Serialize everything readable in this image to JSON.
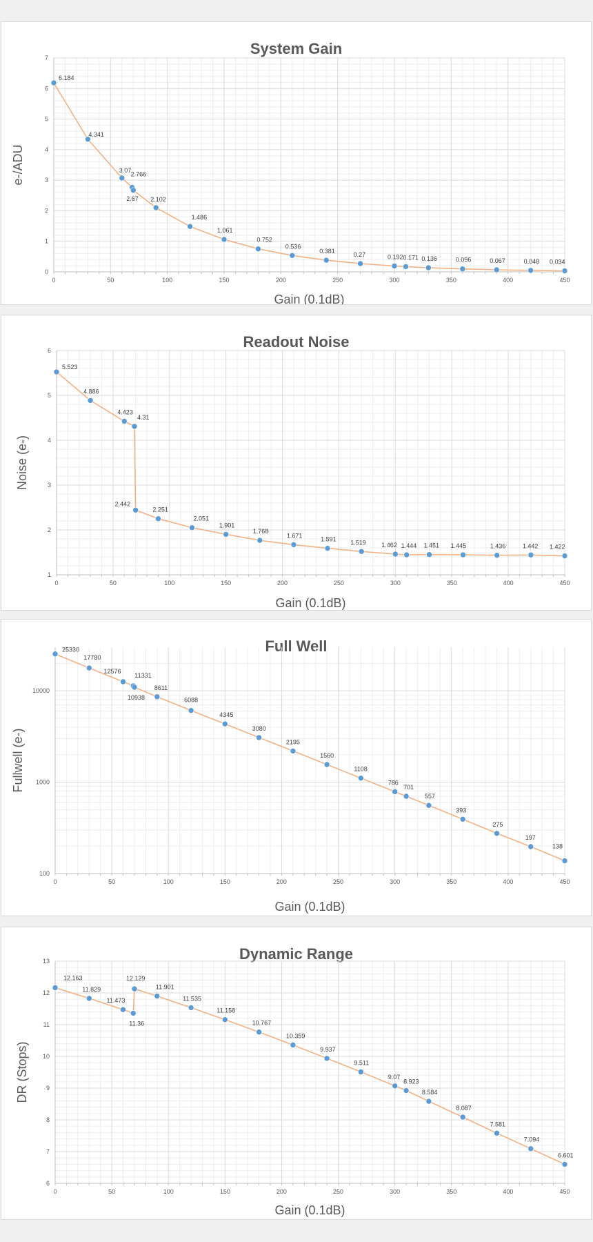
{
  "colors": {
    "line": "#f4b183",
    "marker": "#5b9bd5",
    "grid_major": "#d9d9d9",
    "grid_minor": "#eeeeee",
    "axis": "#bfbfbf",
    "text": "#595959"
  },
  "chart_data": [
    {
      "type": "line",
      "title": "System Gain",
      "xlabel": "Gain (0.1dB)",
      "ylabel": "e-/ADU",
      "xlim": [
        0,
        450
      ],
      "ylim": [
        0,
        7
      ],
      "x_ticks": [
        "0",
        "50",
        "100",
        "150",
        "200",
        "250",
        "300",
        "350",
        "400",
        "450"
      ],
      "y_ticks": [
        "0",
        "1",
        "2",
        "3",
        "4",
        "5",
        "6",
        "7"
      ],
      "grid": true,
      "series": [
        {
          "x": [
            0,
            30,
            60,
            69,
            70,
            90,
            120,
            150,
            180,
            210,
            240,
            270,
            300,
            310,
            330,
            360,
            390,
            420,
            450
          ],
          "y": [
            6.184,
            4.341,
            3.07,
            2.766,
            2.67,
            2.102,
            1.486,
            1.061,
            0.752,
            0.536,
            0.381,
            0.27,
            0.192,
            0.171,
            0.136,
            0.096,
            0.067,
            0.048,
            0.034
          ],
          "labels": [
            "6.184",
            "4.341",
            "3.07",
            "2.766",
            "2.67",
            "2.102",
            "1.486",
            "1.061",
            "0.752",
            "0.536",
            "0.381",
            "0.27",
            "0.192",
            "0.171",
            "0.136",
            "0.096",
            "0.067",
            "0.048",
            "0.034"
          ]
        }
      ]
    },
    {
      "type": "line",
      "title": "Readout Noise",
      "xlabel": "Gain (0.1dB)",
      "ylabel": "Noise (e-)",
      "xlim": [
        0,
        450
      ],
      "ylim": [
        1,
        6
      ],
      "x_ticks": [
        "0",
        "50",
        "100",
        "150",
        "200",
        "250",
        "300",
        "350",
        "400",
        "450"
      ],
      "y_ticks": [
        "1",
        "2",
        "3",
        "4",
        "5",
        "6"
      ],
      "grid": true,
      "series": [
        {
          "x": [
            0,
            30,
            60,
            69,
            70,
            90,
            120,
            150,
            180,
            210,
            240,
            270,
            300,
            310,
            330,
            360,
            390,
            420,
            450
          ],
          "y": [
            5.523,
            4.886,
            4.423,
            4.31,
            2.442,
            2.251,
            2.051,
            1.901,
            1.768,
            1.671,
            1.591,
            1.519,
            1.462,
            1.444,
            1.451,
            1.445,
            1.436,
            1.442,
            1.422
          ],
          "labels": [
            "5.523",
            "4.886",
            "4.423",
            "4.31",
            "2.442",
            "2.251",
            "2.051",
            "1.901",
            "1.768",
            "1.671",
            "1.591",
            "1.519",
            "1.462",
            "1.444",
            "1.451",
            "1.445",
            "1.436",
            "1.442",
            "1.422"
          ]
        }
      ]
    },
    {
      "type": "line",
      "title": "Full Well",
      "xlabel": "Gain (0.1dB)",
      "ylabel": "Fullwell (e-)",
      "xlim": [
        0,
        450
      ],
      "ylim": [
        100,
        30000
      ],
      "log_y": true,
      "x_ticks": [
        "0",
        "50",
        "100",
        "150",
        "200",
        "250",
        "300",
        "350",
        "400",
        "450"
      ],
      "y_ticks": [
        "100",
        "1000",
        "10000"
      ],
      "grid": true,
      "series": [
        {
          "x": [
            0,
            30,
            60,
            69,
            70,
            90,
            120,
            150,
            180,
            210,
            240,
            270,
            300,
            310,
            330,
            360,
            390,
            420,
            450
          ],
          "y": [
            25330,
            17780,
            12576,
            11331,
            10938,
            8611,
            6088,
            4345,
            3080,
            2195,
            1560,
            1108,
            786,
            701,
            557,
            393,
            275,
            197,
            138
          ],
          "labels": [
            "25330",
            "17780",
            "12576",
            "11331",
            "10938",
            "8611",
            "6088",
            "4345",
            "3080",
            "2195",
            "1560",
            "1108",
            "786",
            "701",
            "557",
            "393",
            "275",
            "197",
            "138"
          ]
        }
      ]
    },
    {
      "type": "line",
      "title": "Dynamic Range",
      "xlabel": "Gain (0.1dB)",
      "ylabel": "DR (Stops)",
      "xlim": [
        0,
        450
      ],
      "ylim": [
        6,
        13
      ],
      "x_ticks": [
        "0",
        "50",
        "100",
        "150",
        "200",
        "250",
        "300",
        "350",
        "400",
        "450"
      ],
      "y_ticks": [
        "6",
        "7",
        "8",
        "9",
        "10",
        "11",
        "12",
        "13"
      ],
      "grid": true,
      "series": [
        {
          "x": [
            0,
            30,
            60,
            69,
            70,
            90,
            120,
            150,
            180,
            210,
            240,
            270,
            300,
            310,
            330,
            360,
            390,
            420,
            450
          ],
          "y": [
            12.163,
            11.829,
            11.473,
            11.36,
            12.129,
            11.901,
            11.535,
            11.158,
            10.767,
            10.359,
            9.937,
            9.511,
            9.07,
            8.923,
            8.584,
            8.087,
            7.581,
            7.094,
            6.601
          ],
          "labels": [
            "12.163",
            "11.829",
            "11.473",
            "11.36",
            "12.129",
            "11.901",
            "11.535",
            "11.158",
            "10.767",
            "10.359",
            "9.937",
            "9.511",
            "9.07",
            "8.923",
            "8.584",
            "8.087",
            "7.581",
            "7.094",
            "6.601"
          ]
        }
      ]
    }
  ]
}
